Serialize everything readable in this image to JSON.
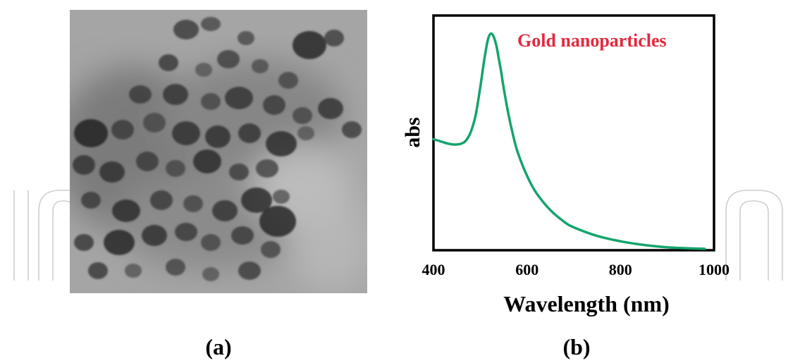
{
  "figure": {
    "panel_a_label": "(a)",
    "panel_b_label": "(b)",
    "panel_a_content": "transmission electron micrograph of nanoparticles",
    "watermark_word": "IntechOpen"
  },
  "chart_data": {
    "type": "line",
    "title": "",
    "annotation": "Gold nanoparticles",
    "xlabel": "Wavelength (nm)",
    "ylabel": "abs",
    "xlim": [
      400,
      1000
    ],
    "ylim": [
      0,
      1.0
    ],
    "x_ticks": [
      400,
      600,
      800,
      1000
    ],
    "y_ticks": [],
    "grid": false,
    "legend": "none",
    "series": [
      {
        "color": "#14a46c",
        "x": [
          400,
          415,
          430,
          445,
          460,
          470,
          480,
          490,
          500,
          508,
          515,
          520,
          525,
          530,
          535,
          540,
          545,
          550,
          560,
          570,
          580,
          600,
          620,
          650,
          680,
          700,
          750,
          800,
          850,
          900,
          950,
          980
        ],
        "y": [
          0.51,
          0.5,
          0.49,
          0.485,
          0.49,
          0.505,
          0.545,
          0.62,
          0.75,
          0.87,
          0.96,
          0.995,
          1.0,
          0.98,
          0.94,
          0.88,
          0.82,
          0.75,
          0.63,
          0.53,
          0.45,
          0.34,
          0.26,
          0.18,
          0.125,
          0.1,
          0.06,
          0.035,
          0.018,
          0.007,
          0.002,
          0.0
        ]
      }
    ]
  },
  "colors": {
    "curve": "#14a46c",
    "annotation": "#e2293e",
    "axis": "#000000",
    "watermark": "#c8c8c8"
  }
}
